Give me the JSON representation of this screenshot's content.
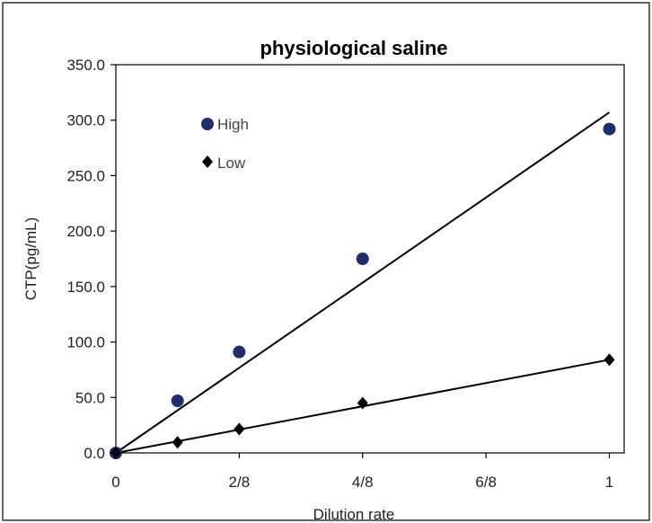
{
  "chart_data": {
    "type": "scatter",
    "title": "physiological saline",
    "xlabel": "Dilution rate",
    "ylabel": "CTP(pg/mL)",
    "xlim": [
      0,
      1.03
    ],
    "ylim": [
      0,
      350
    ],
    "x_ticks": [
      {
        "value": 0,
        "label": "0"
      },
      {
        "value": 0.25,
        "label": "2/8"
      },
      {
        "value": 0.5,
        "label": "4/8"
      },
      {
        "value": 0.75,
        "label": "6/8"
      },
      {
        "value": 1.0,
        "label": "1"
      }
    ],
    "y_ticks": [
      {
        "value": 0,
        "label": "0.0"
      },
      {
        "value": 50,
        "label": "50.0"
      },
      {
        "value": 100,
        "label": "100.0"
      },
      {
        "value": 150,
        "label": "150.0"
      },
      {
        "value": 200,
        "label": "200.0"
      },
      {
        "value": 250,
        "label": "250.0"
      },
      {
        "value": 300,
        "label": "300.0"
      },
      {
        "value": 350,
        "label": "350.0"
      }
    ],
    "grid": false,
    "legend_position": "top-left",
    "series": [
      {
        "name": "High",
        "marker": "circle",
        "color": "#1f2d6b",
        "x": [
          0,
          0.125,
          0.25,
          0.5,
          1.0
        ],
        "y": [
          0,
          47,
          91,
          175,
          292
        ],
        "trendline": {
          "x": [
            0,
            1.0
          ],
          "y": [
            0,
            307
          ]
        }
      },
      {
        "name": "Low",
        "marker": "diamond",
        "color": "#000000",
        "x": [
          0,
          0.125,
          0.25,
          0.5,
          1.0
        ],
        "y": [
          0,
          9.5,
          21.5,
          45,
          84
        ],
        "trendline": {
          "x": [
            0,
            1.0
          ],
          "y": [
            0,
            84
          ]
        }
      }
    ]
  }
}
